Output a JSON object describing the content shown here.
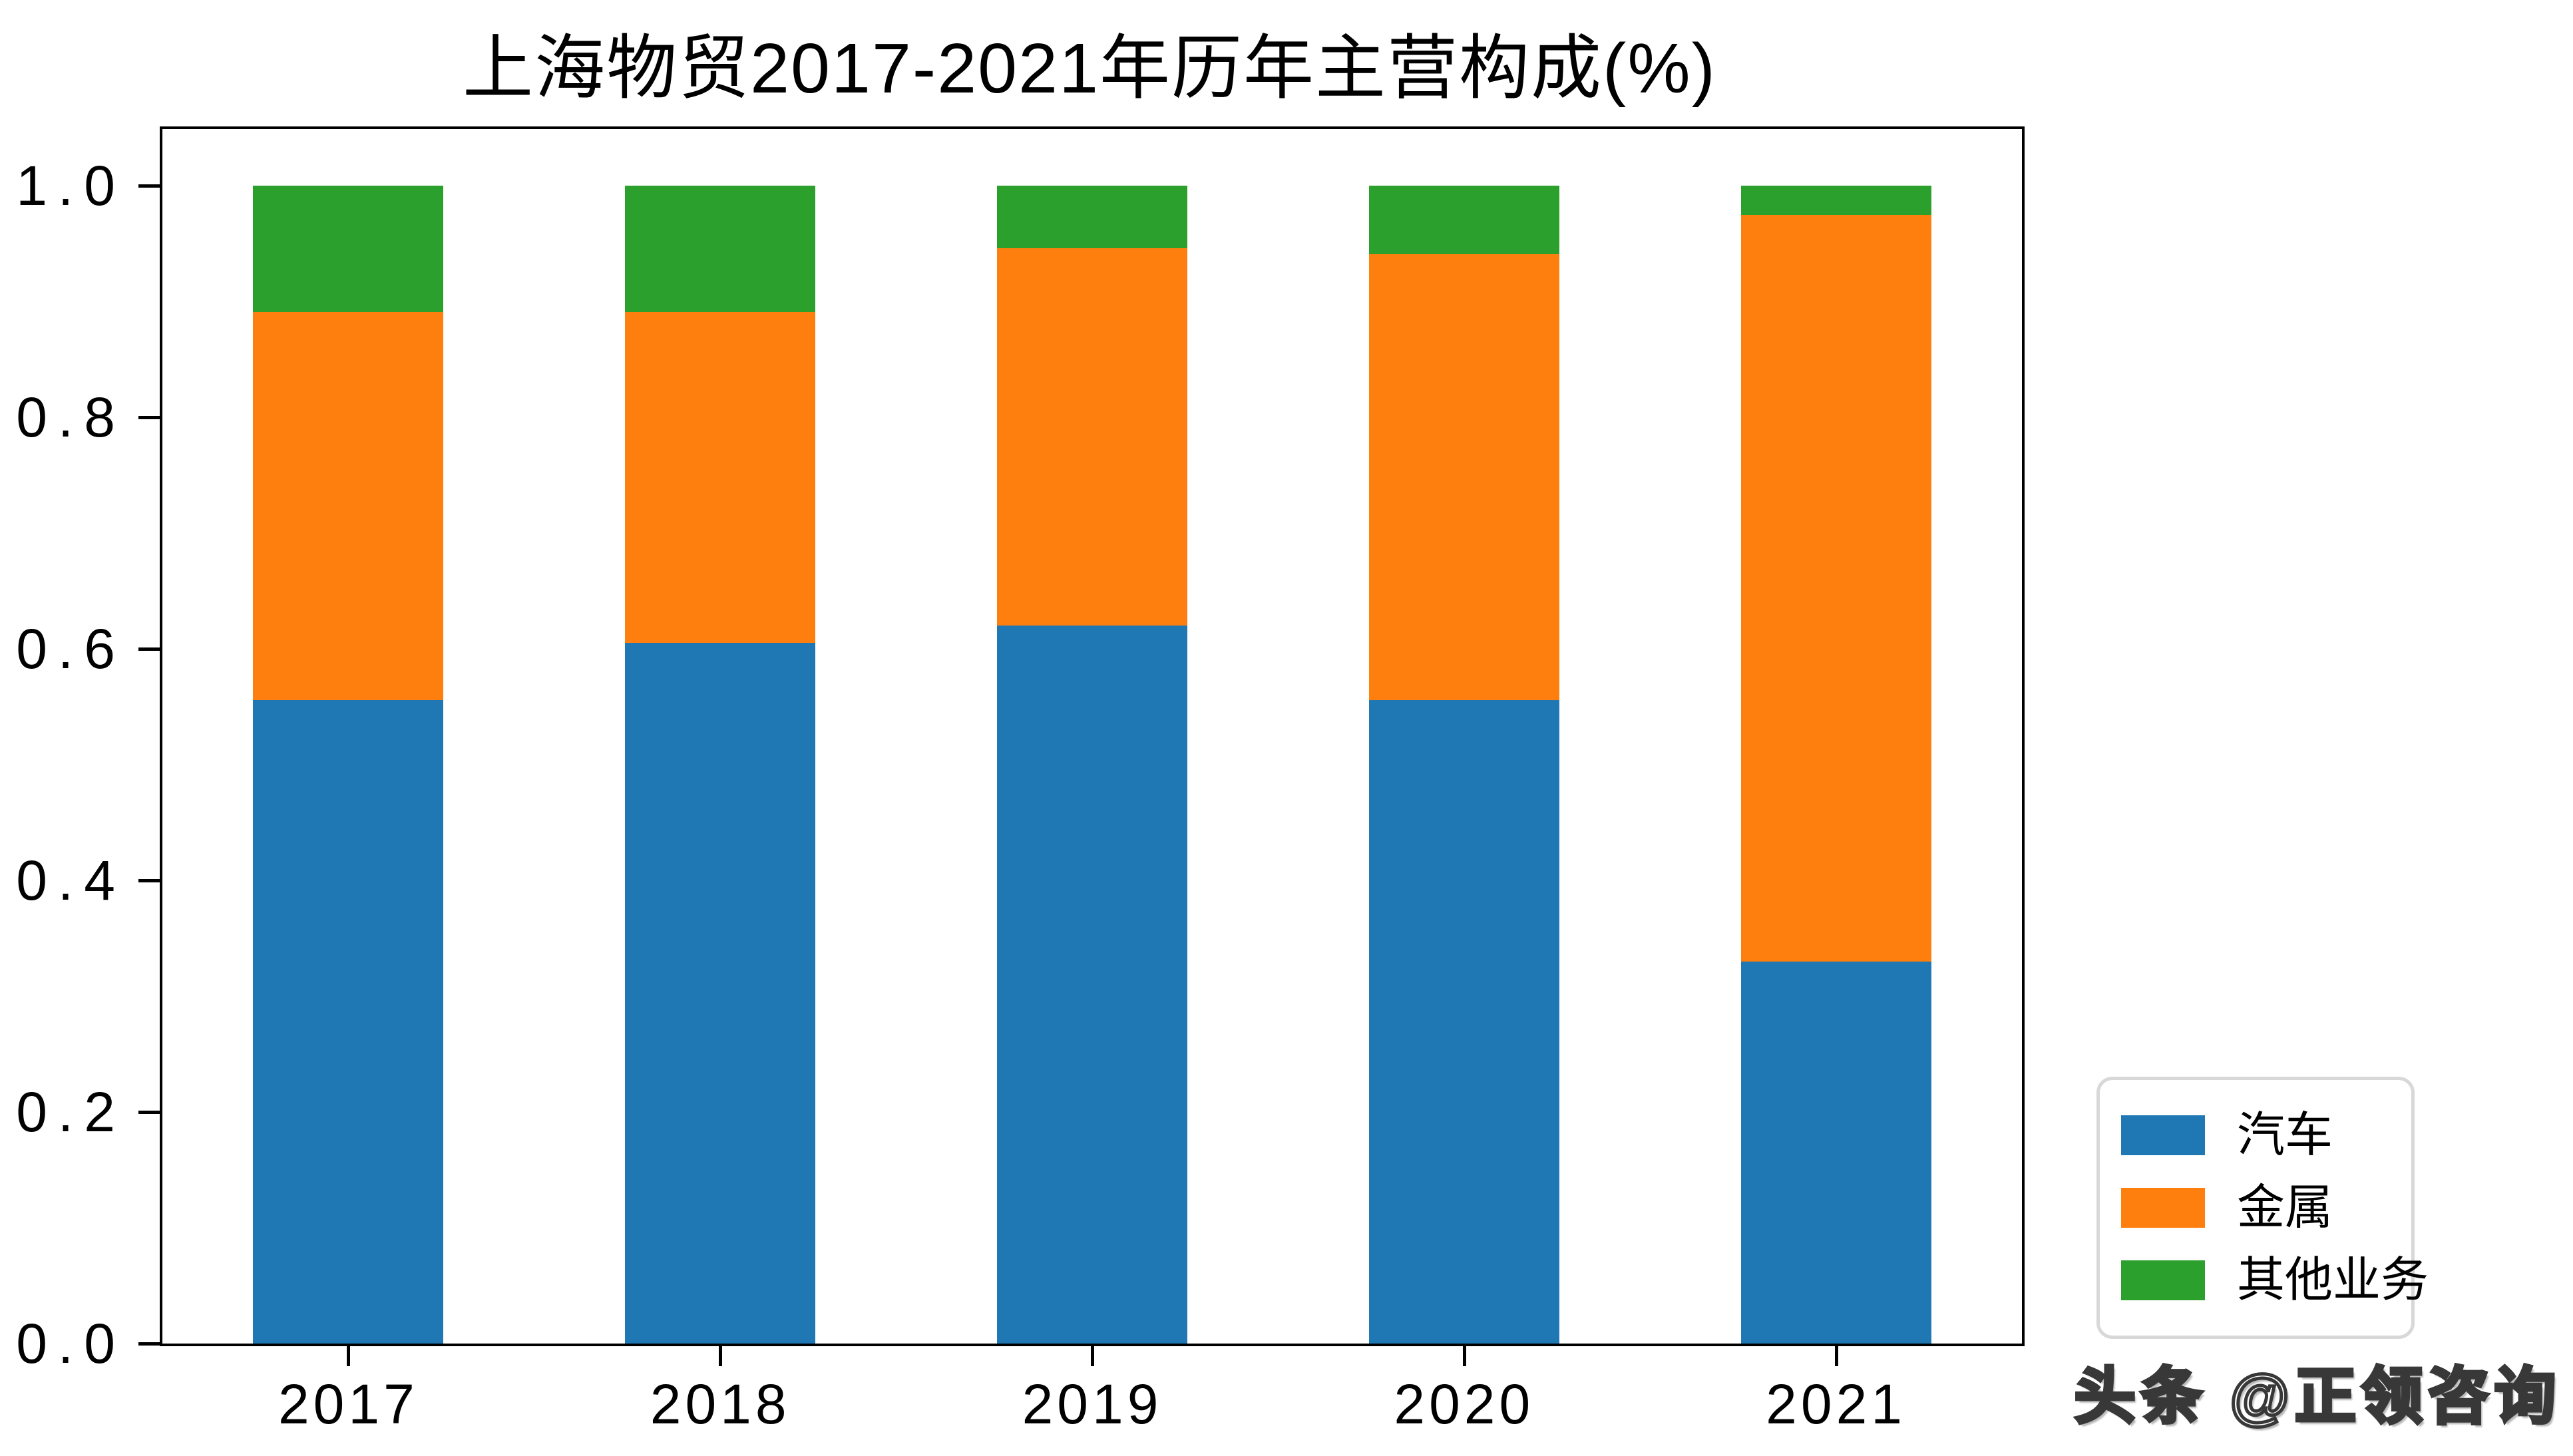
{
  "page": {
    "background": "#ffffff"
  },
  "chart_data": {
    "type": "bar",
    "stacked": true,
    "title": "上海物贸2017-2021年历年主营构成(%)",
    "xlabel": "",
    "ylabel": "",
    "categories": [
      "2017",
      "2018",
      "2019",
      "2020",
      "2021"
    ],
    "series": [
      {
        "name": "汽车",
        "color": "#1f77b4",
        "values": [
          0.556,
          0.605,
          0.62,
          0.556,
          0.33
        ]
      },
      {
        "name": "金属",
        "color": "#ff7f0e",
        "values": [
          0.335,
          0.286,
          0.326,
          0.385,
          0.645
        ]
      },
      {
        "name": "其他业务",
        "color": "#2ca02c",
        "values": [
          0.109,
          0.109,
          0.054,
          0.059,
          0.025
        ]
      }
    ],
    "yticks": [
      {
        "label": "0.0",
        "value": 0.0
      },
      {
        "label": "0.2",
        "value": 0.2
      },
      {
        "label": "0.4",
        "value": 0.4
      },
      {
        "label": "0.6",
        "value": 0.6
      },
      {
        "label": "0.8",
        "value": 0.8
      },
      {
        "label": "1.0",
        "value": 1.0
      }
    ],
    "ylim": [
      0,
      1.049
    ],
    "grid": false,
    "legend_position": "lower-right-outside"
  },
  "watermark": {
    "text": "头条 @正领咨询"
  }
}
